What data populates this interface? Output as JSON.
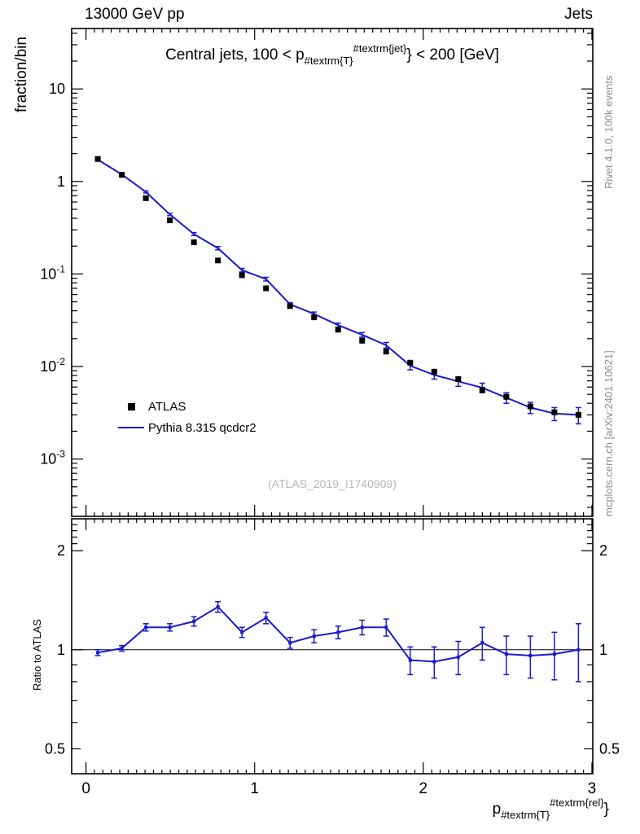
{
  "header": {
    "beam": "13000 GeV pp",
    "process": "Jets"
  },
  "panel_title": {
    "parts": [
      {
        "text": "Central jets, 100 < p",
        "style": "base"
      },
      {
        "text": "#textrm{T}",
        "style": "sub"
      },
      {
        "text": "#textrm{jet}",
        "style": "sup"
      },
      {
        "text": "} < 200 [GeV]",
        "style": "base"
      }
    ]
  },
  "legend": {
    "items": [
      {
        "label": "ATLAS",
        "marker": "filled-square",
        "color": "#000000"
      },
      {
        "label": "Pythia 8.315 qcdcr2",
        "marker": "line",
        "color": "#1a1acd"
      }
    ]
  },
  "watermark": "(ATLAS_2019_I1740909)",
  "side_notes": {
    "top": "Rivet 4.1.0, 100k events",
    "bottom": "mcplots.cern.ch [arXiv:2401.10621]"
  },
  "axis_labels": {
    "y_main": "fraction/bin",
    "y_ratio": "Ratio to ATLAS",
    "x_parts": [
      {
        "text": "p",
        "style": "base"
      },
      {
        "text": "#textrm{T}",
        "style": "sub"
      },
      {
        "text": "#textrm{rel}",
        "style": "sup"
      },
      {
        "text": "}",
        "style": "base"
      }
    ]
  },
  "chart_data": {
    "type": "line",
    "title": "Central jets, 100 < pT(jet) < 200 [GeV]",
    "x": [
      0.07,
      0.2125,
      0.355,
      0.4975,
      0.64,
      0.7825,
      0.925,
      1.0675,
      1.21,
      1.3525,
      1.495,
      1.6375,
      1.78,
      1.9225,
      2.065,
      2.2075,
      2.35,
      2.4925,
      2.635,
      2.7775,
      2.92
    ],
    "series": [
      {
        "name": "ATLAS",
        "style": "scatter-square",
        "color": "#000000",
        "values": [
          1.75,
          1.18,
          0.66,
          0.38,
          0.22,
          0.14,
          0.097,
          0.07,
          0.045,
          0.034,
          0.025,
          0.019,
          0.0145,
          0.011,
          0.0088,
          0.0073,
          0.0056,
          0.0047,
          0.0037,
          0.0032,
          0.003
        ],
        "yerr": [
          0.06,
          0.04,
          0.025,
          0.015,
          0.009,
          0.006,
          0.004,
          0.003,
          0.002,
          0.0015,
          0.0012,
          0.001,
          0.0008,
          0.0007,
          0.0006,
          0.0005,
          0.0004,
          0.0004,
          0.0003,
          0.0003,
          0.0003
        ]
      },
      {
        "name": "Pythia 8.315 qcdcr2",
        "style": "line",
        "color": "#1a1acd",
        "values": [
          1.72,
          1.19,
          0.77,
          0.44,
          0.27,
          0.19,
          0.11,
          0.088,
          0.047,
          0.037,
          0.028,
          0.022,
          0.017,
          0.0102,
          0.0081,
          0.0069,
          0.0059,
          0.0046,
          0.0036,
          0.0031,
          0.003
        ],
        "yerr": [
          0.035,
          0.025,
          0.02,
          0.013,
          0.01,
          0.008,
          0.005,
          0.004,
          0.002,
          0.0018,
          0.0014,
          0.0013,
          0.0012,
          0.001,
          0.0008,
          0.0008,
          0.0007,
          0.0006,
          0.0005,
          0.0005,
          0.0006
        ]
      }
    ],
    "ratio": {
      "name": "Pythia/ATLAS",
      "color": "#1a1acd",
      "reference": 1,
      "values": [
        0.98,
        1.01,
        1.17,
        1.17,
        1.22,
        1.35,
        1.13,
        1.25,
        1.05,
        1.1,
        1.13,
        1.17,
        1.17,
        0.93,
        0.92,
        0.95,
        1.05,
        0.97,
        0.96,
        0.97,
        1.0
      ],
      "yerr": [
        0.02,
        0.02,
        0.03,
        0.03,
        0.04,
        0.05,
        0.04,
        0.05,
        0.04,
        0.05,
        0.05,
        0.06,
        0.07,
        0.09,
        0.1,
        0.11,
        0.12,
        0.13,
        0.14,
        0.16,
        0.2
      ]
    },
    "axes": {
      "x": {
        "min": -0.085,
        "max": 3.005,
        "ticks": [
          {
            "v": 0,
            "label": "0"
          },
          {
            "v": 1,
            "label": "1"
          },
          {
            "v": 2,
            "label": "2"
          },
          {
            "v": 3,
            "label": "3"
          }
        ]
      },
      "y_main": {
        "scale": "log",
        "min": 0.00024,
        "max": 45,
        "ticks": [
          {
            "v": 10,
            "base": "10",
            "sup": ""
          },
          {
            "v": 1,
            "base": "1",
            "sup": ""
          },
          {
            "v": 0.1,
            "base": "10",
            "sup": "-1"
          },
          {
            "v": 0.01,
            "base": "10",
            "sup": "-2"
          },
          {
            "v": 0.001,
            "base": "10",
            "sup": "-3"
          }
        ]
      },
      "y_ratio": {
        "scale": "log",
        "min": 0.42,
        "max": 2.5,
        "ticks": [
          {
            "v": 2,
            "label": "2"
          },
          {
            "v": 1,
            "label": "1"
          },
          {
            "v": 0.5,
            "label": "0.5"
          }
        ]
      }
    }
  }
}
